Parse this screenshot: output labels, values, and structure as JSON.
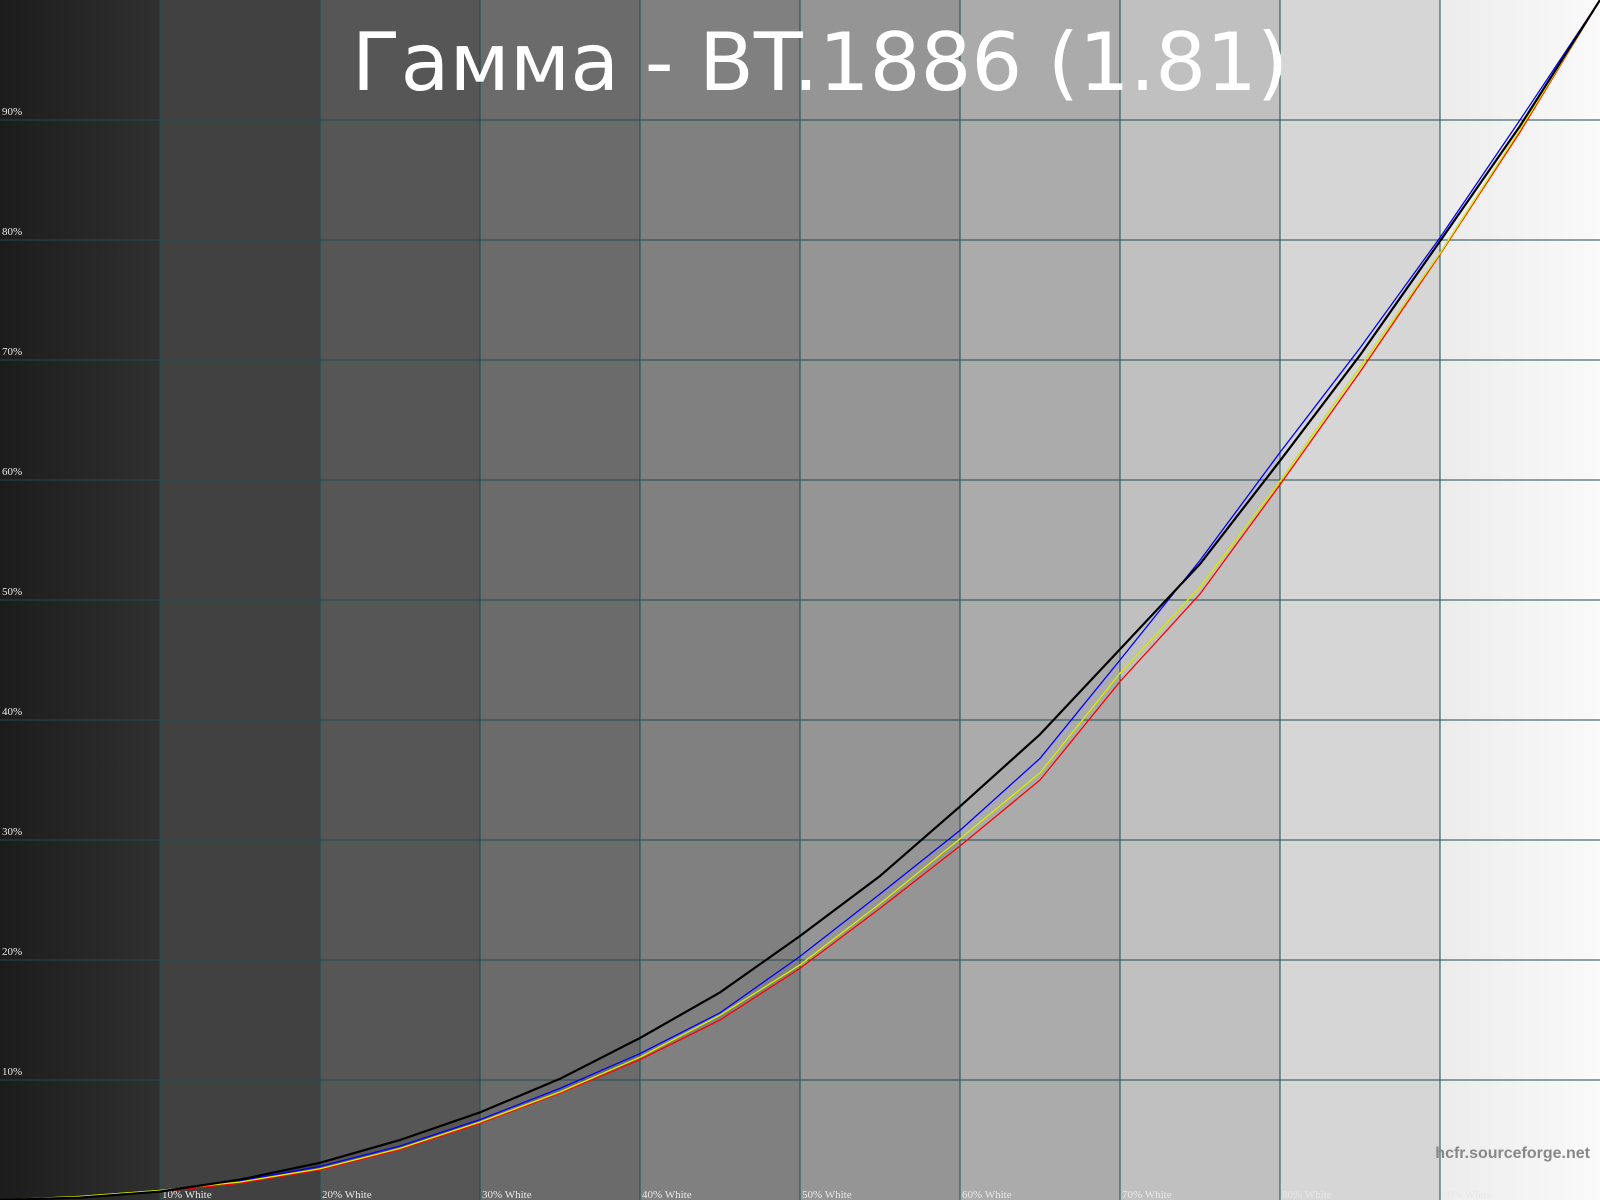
{
  "chart_data": {
    "type": "line",
    "title": "Гамма - BT.1886 (1.81)",
    "watermark": "hcfr.sourceforge.net",
    "x": [
      0,
      5,
      10,
      15,
      20,
      25,
      30,
      35,
      40,
      45,
      50,
      55,
      60,
      65,
      70,
      75,
      80,
      85,
      90,
      95,
      100
    ],
    "series": [
      {
        "color": "#ff0000",
        "values": [
          0,
          0.3,
          0.7,
          1.4,
          2.5,
          4.2,
          6.4,
          8.9,
          11.7,
          15.0,
          19.3,
          24.3,
          29.5,
          35.0,
          43.2,
          50.5,
          59.6,
          69.0,
          78.8,
          89.0,
          100
        ]
      },
      {
        "color": "#0000ff",
        "values": [
          0,
          0.3,
          0.8,
          1.6,
          2.8,
          4.5,
          6.7,
          9.3,
          12.2,
          15.6,
          20.3,
          25.5,
          30.8,
          36.8,
          45.0,
          53.3,
          62.3,
          71.0,
          80.2,
          90.0,
          100
        ]
      },
      {
        "color": "#00d000",
        "values": [
          0,
          0.3,
          0.8,
          1.5,
          2.6,
          4.3,
          6.5,
          9.0,
          11.9,
          15.4,
          19.6,
          24.7,
          30.1,
          35.6,
          43.9,
          51.1,
          59.9,
          69.4,
          78.9,
          89.2,
          100
        ]
      },
      {
        "color": "#e8e800",
        "values": [
          0,
          0.3,
          0.8,
          1.5,
          2.6,
          4.3,
          6.5,
          9.0,
          11.9,
          15.4,
          19.6,
          24.7,
          30.1,
          35.6,
          43.9,
          51.1,
          59.9,
          69.4,
          78.9,
          89.2,
          100
        ]
      },
      {
        "color": "#000000",
        "values": [
          0,
          0.2,
          0.7,
          1.7,
          3.1,
          5.0,
          7.3,
          10.1,
          13.5,
          17.3,
          22.0,
          27.0,
          32.8,
          38.8,
          45.9,
          53.0,
          61.6,
          70.4,
          79.9,
          89.5,
          100
        ]
      }
    ],
    "xlim": [
      0,
      100
    ],
    "ylim": [
      0,
      100
    ],
    "xticks": [
      {
        "value": 10,
        "label": "10% White"
      },
      {
        "value": 20,
        "label": "20% White"
      },
      {
        "value": 30,
        "label": "30% White"
      },
      {
        "value": 40,
        "label": "40% White"
      },
      {
        "value": 50,
        "label": "50% White"
      },
      {
        "value": 60,
        "label": "60% White"
      },
      {
        "value": 70,
        "label": "70% White"
      },
      {
        "value": 80,
        "label": "80% White"
      },
      {
        "value": 90,
        "label": "90% White"
      }
    ],
    "yticks": [
      {
        "value": 10,
        "label": "10%"
      },
      {
        "value": 20,
        "label": "20%"
      },
      {
        "value": 30,
        "label": "30%"
      },
      {
        "value": 40,
        "label": "40%"
      },
      {
        "value": 50,
        "label": "50%"
      },
      {
        "value": 60,
        "label": "60%"
      },
      {
        "value": 70,
        "label": "70%"
      },
      {
        "value": 80,
        "label": "80%"
      },
      {
        "value": 90,
        "label": "90%"
      }
    ],
    "grid": true,
    "grid_color": "#1d4d4d"
  }
}
